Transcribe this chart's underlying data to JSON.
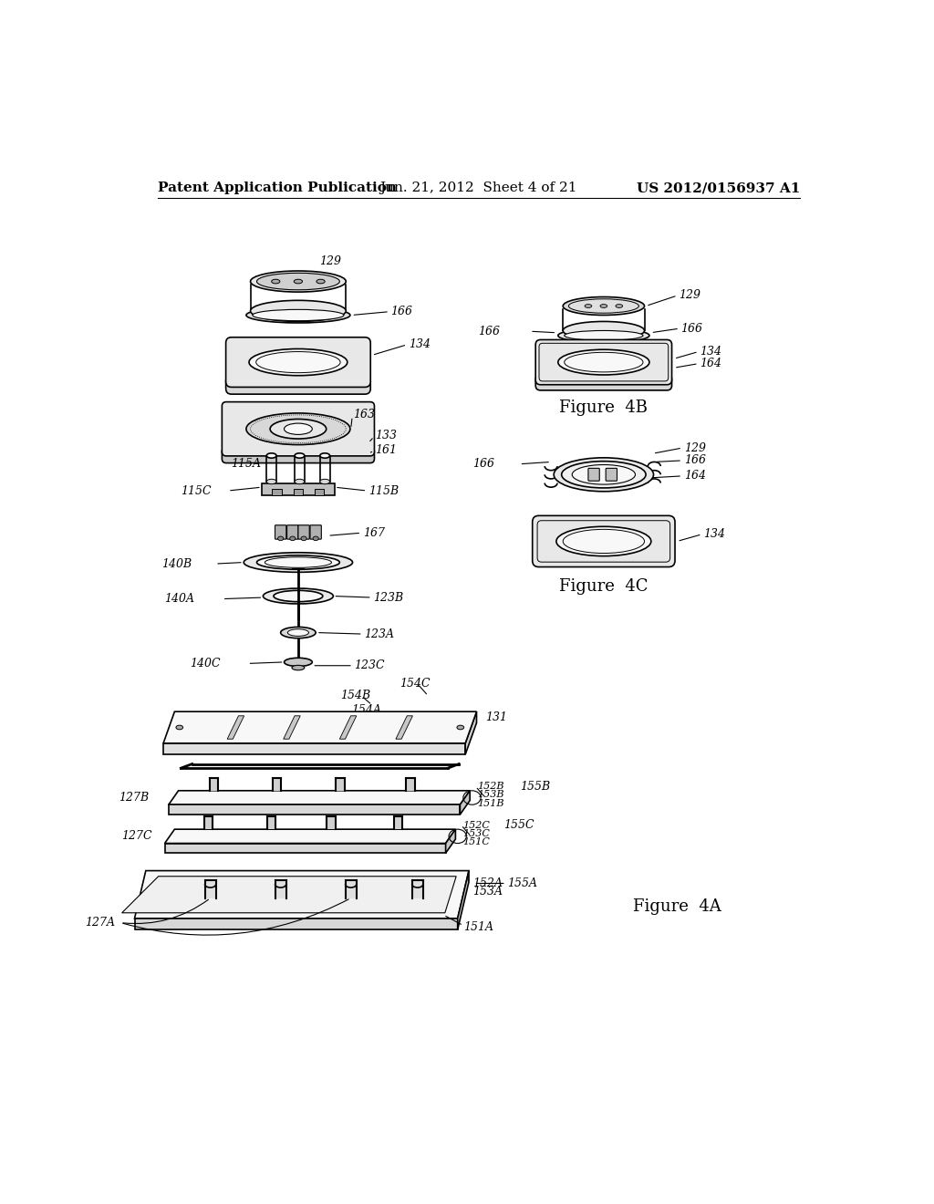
{
  "background_color": "#ffffff",
  "header_left": "Patent Application Publication",
  "header_center": "Jun. 21, 2012  Sheet 4 of 21",
  "header_right": "US 2012/0156937 A1",
  "header_fontsize": 11
}
